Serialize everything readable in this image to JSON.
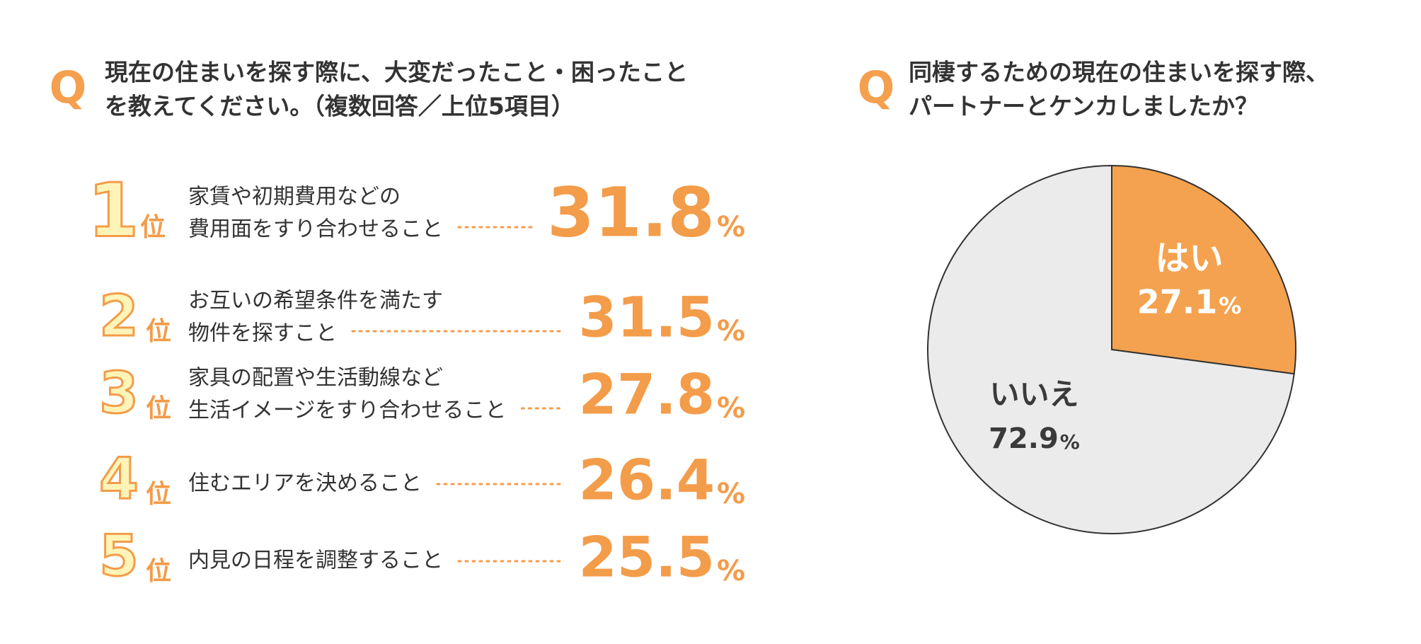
{
  "chart_data": [
    {
      "type": "ranking",
      "marker": "Q",
      "title": [
        "現在の住まいを探す際に、大変だったこと・困ったこと",
        "を教えてください。（複数回答／上位5項目）"
      ],
      "ranks": [
        "1",
        "2",
        "3",
        "4",
        "5"
      ],
      "rank_suffix": "位",
      "categories": [
        [
          "家賃や初期費用などの",
          "費用面をすり合わせること"
        ],
        [
          "お互いの希望条件を満たす",
          "物件を探すこと"
        ],
        [
          "家具の配置や生活動線など",
          "生活イメージをすり合わせること"
        ],
        [
          "住むエリアを決めること"
        ],
        [
          "内見の日程を調整すること"
        ]
      ],
      "values": [
        31.8,
        31.5,
        27.8,
        26.4,
        25.5
      ],
      "unit": "%",
      "color": "#f39c4a"
    },
    {
      "type": "pie",
      "marker": "Q",
      "title": [
        "同棲するための現在の住まいを探す際、",
        "パートナーとケンカしましたか？"
      ],
      "categories": [
        "はい",
        "いいえ"
      ],
      "values": [
        27.1,
        72.9
      ],
      "unit": "%",
      "colors": [
        "#f4a24f",
        "#ebebeb"
      ],
      "label_colors": [
        "#ffffff",
        "#3a3a3a"
      ]
    }
  ]
}
